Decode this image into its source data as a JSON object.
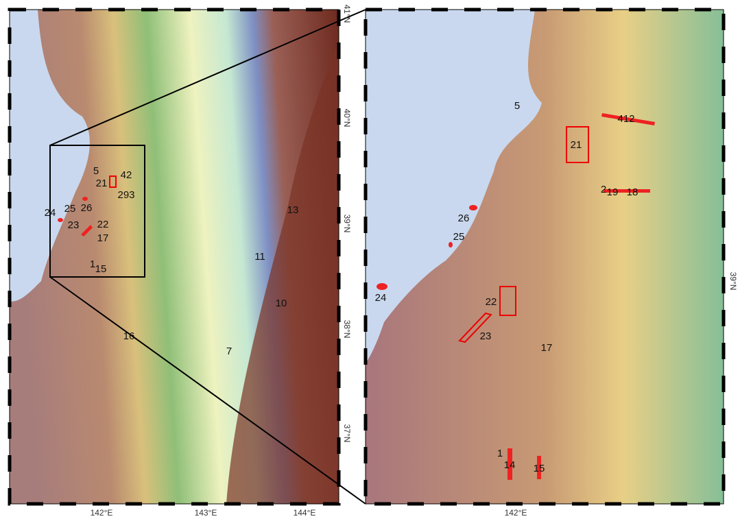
{
  "left_map": {
    "x_labels": [
      "142°E",
      "143°E",
      "144°E"
    ],
    "y_labels": [
      "41°N",
      "40°N",
      "39°N",
      "38°N",
      "37°N"
    ],
    "sites": [
      "5",
      "42",
      "21",
      "293",
      "24",
      "25",
      "26",
      "23",
      "22",
      "17",
      "1",
      "15",
      "13",
      "11",
      "10",
      "16",
      "7"
    ]
  },
  "right_map": {
    "x_labels": [
      "142°E"
    ],
    "y_labels": [
      "39°N"
    ],
    "sites": [
      "5",
      "412",
      "21",
      "2",
      "19",
      "18",
      "26",
      "25",
      "24",
      "22",
      "23",
      "17",
      "1",
      "14",
      "15"
    ]
  }
}
